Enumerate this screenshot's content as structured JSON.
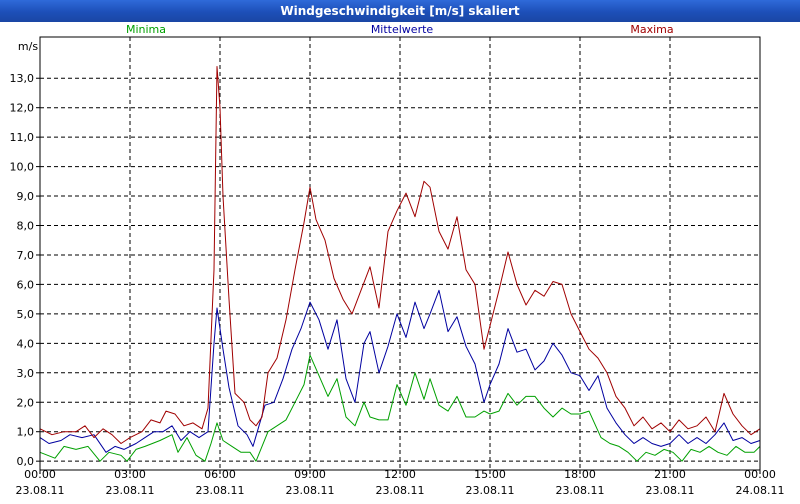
{
  "window": {
    "title": "Windgeschwindigkeit [m/s] skaliert"
  },
  "chart_data": {
    "type": "line",
    "title": "Windgeschwindigkeit [m/s] skaliert",
    "ylabel": "m/s",
    "ylim": [
      -0.3,
      14.4
    ],
    "xlim": [
      0,
      24
    ],
    "y_ticks": [
      "0,0",
      "1,0",
      "2,0",
      "3,0",
      "4,0",
      "5,0",
      "6,0",
      "7,0",
      "8,0",
      "9,0",
      "10,0",
      "11,0",
      "12,0",
      "13,0"
    ],
    "x_ticks": [
      {
        "time": "00:00",
        "date": "23.08.11"
      },
      {
        "time": "03:00",
        "date": "23.08.11"
      },
      {
        "time": "06:00",
        "date": "23.08.11"
      },
      {
        "time": "09:00",
        "date": "23.08.11"
      },
      {
        "time": "12:00",
        "date": "23.08.11"
      },
      {
        "time": "15:00",
        "date": "23.08.11"
      },
      {
        "time": "18:00",
        "date": "23.08.11"
      },
      {
        "time": "21:00",
        "date": "23.08.11"
      },
      {
        "time": "00:00",
        "date": "24.08.11"
      }
    ],
    "grid": true,
    "legend_position": "top",
    "series": [
      {
        "name": "Minima",
        "color": "#00a000",
        "points": [
          [
            0,
            0.3
          ],
          [
            0.5,
            0.1
          ],
          [
            0.8,
            0.5
          ],
          [
            1.2,
            0.4
          ],
          [
            1.6,
            0.5
          ],
          [
            2.0,
            0.0
          ],
          [
            2.3,
            0.3
          ],
          [
            2.7,
            0.2
          ],
          [
            2.9,
            0.0
          ],
          [
            3.2,
            0.4
          ],
          [
            3.5,
            0.5
          ],
          [
            4.0,
            0.7
          ],
          [
            4.4,
            0.9
          ],
          [
            4.6,
            0.3
          ],
          [
            4.9,
            0.8
          ],
          [
            5.2,
            0.2
          ],
          [
            5.5,
            0.0
          ],
          [
            5.7,
            0.6
          ],
          [
            5.9,
            1.3
          ],
          [
            6.1,
            0.7
          ],
          [
            6.4,
            0.5
          ],
          [
            6.7,
            0.3
          ],
          [
            7.0,
            0.3
          ],
          [
            7.2,
            0.0
          ],
          [
            7.4,
            0.5
          ],
          [
            7.6,
            1.0
          ],
          [
            7.9,
            1.2
          ],
          [
            8.2,
            1.4
          ],
          [
            8.5,
            2.0
          ],
          [
            8.8,
            2.6
          ],
          [
            9.0,
            3.6
          ],
          [
            9.3,
            2.9
          ],
          [
            9.6,
            2.2
          ],
          [
            9.9,
            2.8
          ],
          [
            10.2,
            1.5
          ],
          [
            10.5,
            1.2
          ],
          [
            10.8,
            2.0
          ],
          [
            11.0,
            1.5
          ],
          [
            11.3,
            1.4
          ],
          [
            11.6,
            1.4
          ],
          [
            11.9,
            2.6
          ],
          [
            12.2,
            1.9
          ],
          [
            12.5,
            3.0
          ],
          [
            12.8,
            2.1
          ],
          [
            13.0,
            2.8
          ],
          [
            13.3,
            1.9
          ],
          [
            13.6,
            1.7
          ],
          [
            13.9,
            2.2
          ],
          [
            14.2,
            1.5
          ],
          [
            14.5,
            1.5
          ],
          [
            14.8,
            1.7
          ],
          [
            15.0,
            1.6
          ],
          [
            15.3,
            1.7
          ],
          [
            15.6,
            2.3
          ],
          [
            15.9,
            1.9
          ],
          [
            16.2,
            2.2
          ],
          [
            16.5,
            2.2
          ],
          [
            16.8,
            1.8
          ],
          [
            17.1,
            1.5
          ],
          [
            17.4,
            1.8
          ],
          [
            17.7,
            1.6
          ],
          [
            18.0,
            1.6
          ],
          [
            18.3,
            1.7
          ],
          [
            18.7,
            0.8
          ],
          [
            19.0,
            0.6
          ],
          [
            19.3,
            0.5
          ],
          [
            19.6,
            0.3
          ],
          [
            19.9,
            0.0
          ],
          [
            20.2,
            0.3
          ],
          [
            20.5,
            0.2
          ],
          [
            20.8,
            0.4
          ],
          [
            21.1,
            0.3
          ],
          [
            21.4,
            0.0
          ],
          [
            21.7,
            0.4
          ],
          [
            22.0,
            0.3
          ],
          [
            22.3,
            0.5
          ],
          [
            22.6,
            0.3
          ],
          [
            22.9,
            0.2
          ],
          [
            23.2,
            0.5
          ],
          [
            23.5,
            0.3
          ],
          [
            23.8,
            0.3
          ],
          [
            24.0,
            0.5
          ]
        ]
      },
      {
        "name": "Mittelwerte",
        "color": "#0000a0",
        "points": [
          [
            0,
            0.8
          ],
          [
            0.3,
            0.6
          ],
          [
            0.7,
            0.7
          ],
          [
            1.0,
            0.9
          ],
          [
            1.4,
            0.8
          ],
          [
            1.8,
            0.9
          ],
          [
            2.2,
            0.3
          ],
          [
            2.5,
            0.5
          ],
          [
            2.8,
            0.4
          ],
          [
            3.2,
            0.6
          ],
          [
            3.5,
            0.8
          ],
          [
            3.8,
            1.0
          ],
          [
            4.1,
            1.0
          ],
          [
            4.4,
            1.2
          ],
          [
            4.7,
            0.7
          ],
          [
            5.0,
            1.0
          ],
          [
            5.3,
            0.8
          ],
          [
            5.6,
            1.0
          ],
          [
            5.8,
            4.0
          ],
          [
            5.9,
            5.2
          ],
          [
            6.1,
            3.8
          ],
          [
            6.3,
            2.5
          ],
          [
            6.6,
            1.2
          ],
          [
            6.9,
            0.9
          ],
          [
            7.1,
            0.5
          ],
          [
            7.3,
            1.2
          ],
          [
            7.5,
            1.9
          ],
          [
            7.8,
            2.0
          ],
          [
            8.1,
            2.8
          ],
          [
            8.4,
            3.8
          ],
          [
            8.7,
            4.5
          ],
          [
            9.0,
            5.4
          ],
          [
            9.3,
            4.8
          ],
          [
            9.6,
            3.8
          ],
          [
            9.9,
            4.8
          ],
          [
            10.2,
            2.8
          ],
          [
            10.5,
            2.0
          ],
          [
            10.8,
            4.0
          ],
          [
            11.0,
            4.4
          ],
          [
            11.3,
            3.0
          ],
          [
            11.6,
            3.9
          ],
          [
            11.9,
            5.0
          ],
          [
            12.2,
            4.2
          ],
          [
            12.5,
            5.4
          ],
          [
            12.8,
            4.5
          ],
          [
            13.0,
            5.0
          ],
          [
            13.3,
            5.8
          ],
          [
            13.6,
            4.4
          ],
          [
            13.9,
            4.9
          ],
          [
            14.2,
            3.9
          ],
          [
            14.5,
            3.3
          ],
          [
            14.8,
            2.0
          ],
          [
            15.0,
            2.6
          ],
          [
            15.3,
            3.3
          ],
          [
            15.6,
            4.5
          ],
          [
            15.9,
            3.7
          ],
          [
            16.2,
            3.8
          ],
          [
            16.5,
            3.1
          ],
          [
            16.8,
            3.4
          ],
          [
            17.1,
            4.0
          ],
          [
            17.4,
            3.6
          ],
          [
            17.7,
            3.0
          ],
          [
            18.0,
            2.9
          ],
          [
            18.3,
            2.4
          ],
          [
            18.6,
            2.9
          ],
          [
            18.9,
            1.8
          ],
          [
            19.2,
            1.3
          ],
          [
            19.5,
            0.9
          ],
          [
            19.8,
            0.6
          ],
          [
            20.1,
            0.8
          ],
          [
            20.4,
            0.6
          ],
          [
            20.7,
            0.5
          ],
          [
            21.0,
            0.6
          ],
          [
            21.3,
            0.9
          ],
          [
            21.6,
            0.6
          ],
          [
            21.9,
            0.8
          ],
          [
            22.2,
            0.6
          ],
          [
            22.5,
            0.9
          ],
          [
            22.8,
            1.3
          ],
          [
            23.1,
            0.7
          ],
          [
            23.4,
            0.8
          ],
          [
            23.7,
            0.6
          ],
          [
            24.0,
            0.7
          ]
        ]
      },
      {
        "name": "Maxima",
        "color": "#a00000",
        "points": [
          [
            0,
            1.1
          ],
          [
            0.4,
            0.9
          ],
          [
            0.8,
            1.0
          ],
          [
            1.2,
            1.0
          ],
          [
            1.5,
            1.2
          ],
          [
            1.8,
            0.8
          ],
          [
            2.1,
            1.1
          ],
          [
            2.4,
            0.9
          ],
          [
            2.7,
            0.6
          ],
          [
            3.0,
            0.8
          ],
          [
            3.4,
            1.0
          ],
          [
            3.7,
            1.4
          ],
          [
            4.0,
            1.3
          ],
          [
            4.2,
            1.7
          ],
          [
            4.5,
            1.6
          ],
          [
            4.8,
            1.2
          ],
          [
            5.1,
            1.3
          ],
          [
            5.4,
            1.1
          ],
          [
            5.6,
            1.8
          ],
          [
            5.8,
            6.5
          ],
          [
            5.9,
            13.4
          ],
          [
            6.0,
            12.0
          ],
          [
            6.1,
            9.0
          ],
          [
            6.3,
            5.5
          ],
          [
            6.5,
            2.3
          ],
          [
            6.8,
            2.0
          ],
          [
            7.0,
            1.4
          ],
          [
            7.2,
            1.2
          ],
          [
            7.4,
            1.5
          ],
          [
            7.6,
            3.0
          ],
          [
            7.9,
            3.5
          ],
          [
            8.2,
            4.8
          ],
          [
            8.5,
            6.5
          ],
          [
            8.8,
            8.1
          ],
          [
            9.0,
            9.3
          ],
          [
            9.2,
            8.2
          ],
          [
            9.5,
            7.5
          ],
          [
            9.8,
            6.2
          ],
          [
            10.1,
            5.5
          ],
          [
            10.4,
            5.0
          ],
          [
            10.7,
            5.8
          ],
          [
            11.0,
            6.6
          ],
          [
            11.3,
            5.2
          ],
          [
            11.6,
            7.8
          ],
          [
            11.9,
            8.5
          ],
          [
            12.2,
            9.1
          ],
          [
            12.5,
            8.3
          ],
          [
            12.8,
            9.5
          ],
          [
            13.0,
            9.3
          ],
          [
            13.3,
            7.8
          ],
          [
            13.6,
            7.2
          ],
          [
            13.9,
            8.3
          ],
          [
            14.2,
            6.5
          ],
          [
            14.5,
            6.0
          ],
          [
            14.8,
            3.8
          ],
          [
            15.0,
            4.6
          ],
          [
            15.3,
            5.8
          ],
          [
            15.6,
            7.1
          ],
          [
            15.9,
            6.0
          ],
          [
            16.2,
            5.3
          ],
          [
            16.5,
            5.8
          ],
          [
            16.8,
            5.6
          ],
          [
            17.1,
            6.1
          ],
          [
            17.4,
            6.0
          ],
          [
            17.7,
            5.0
          ],
          [
            18.0,
            4.4
          ],
          [
            18.3,
            3.8
          ],
          [
            18.6,
            3.5
          ],
          [
            18.9,
            3.0
          ],
          [
            19.2,
            2.2
          ],
          [
            19.5,
            1.8
          ],
          [
            19.8,
            1.2
          ],
          [
            20.1,
            1.5
          ],
          [
            20.4,
            1.1
          ],
          [
            20.7,
            1.3
          ],
          [
            21.0,
            1.0
          ],
          [
            21.3,
            1.4
          ],
          [
            21.6,
            1.1
          ],
          [
            21.9,
            1.2
          ],
          [
            22.2,
            1.5
          ],
          [
            22.5,
            1.0
          ],
          [
            22.8,
            2.3
          ],
          [
            23.1,
            1.6
          ],
          [
            23.4,
            1.2
          ],
          [
            23.7,
            0.9
          ],
          [
            24.0,
            1.1
          ]
        ]
      }
    ]
  }
}
